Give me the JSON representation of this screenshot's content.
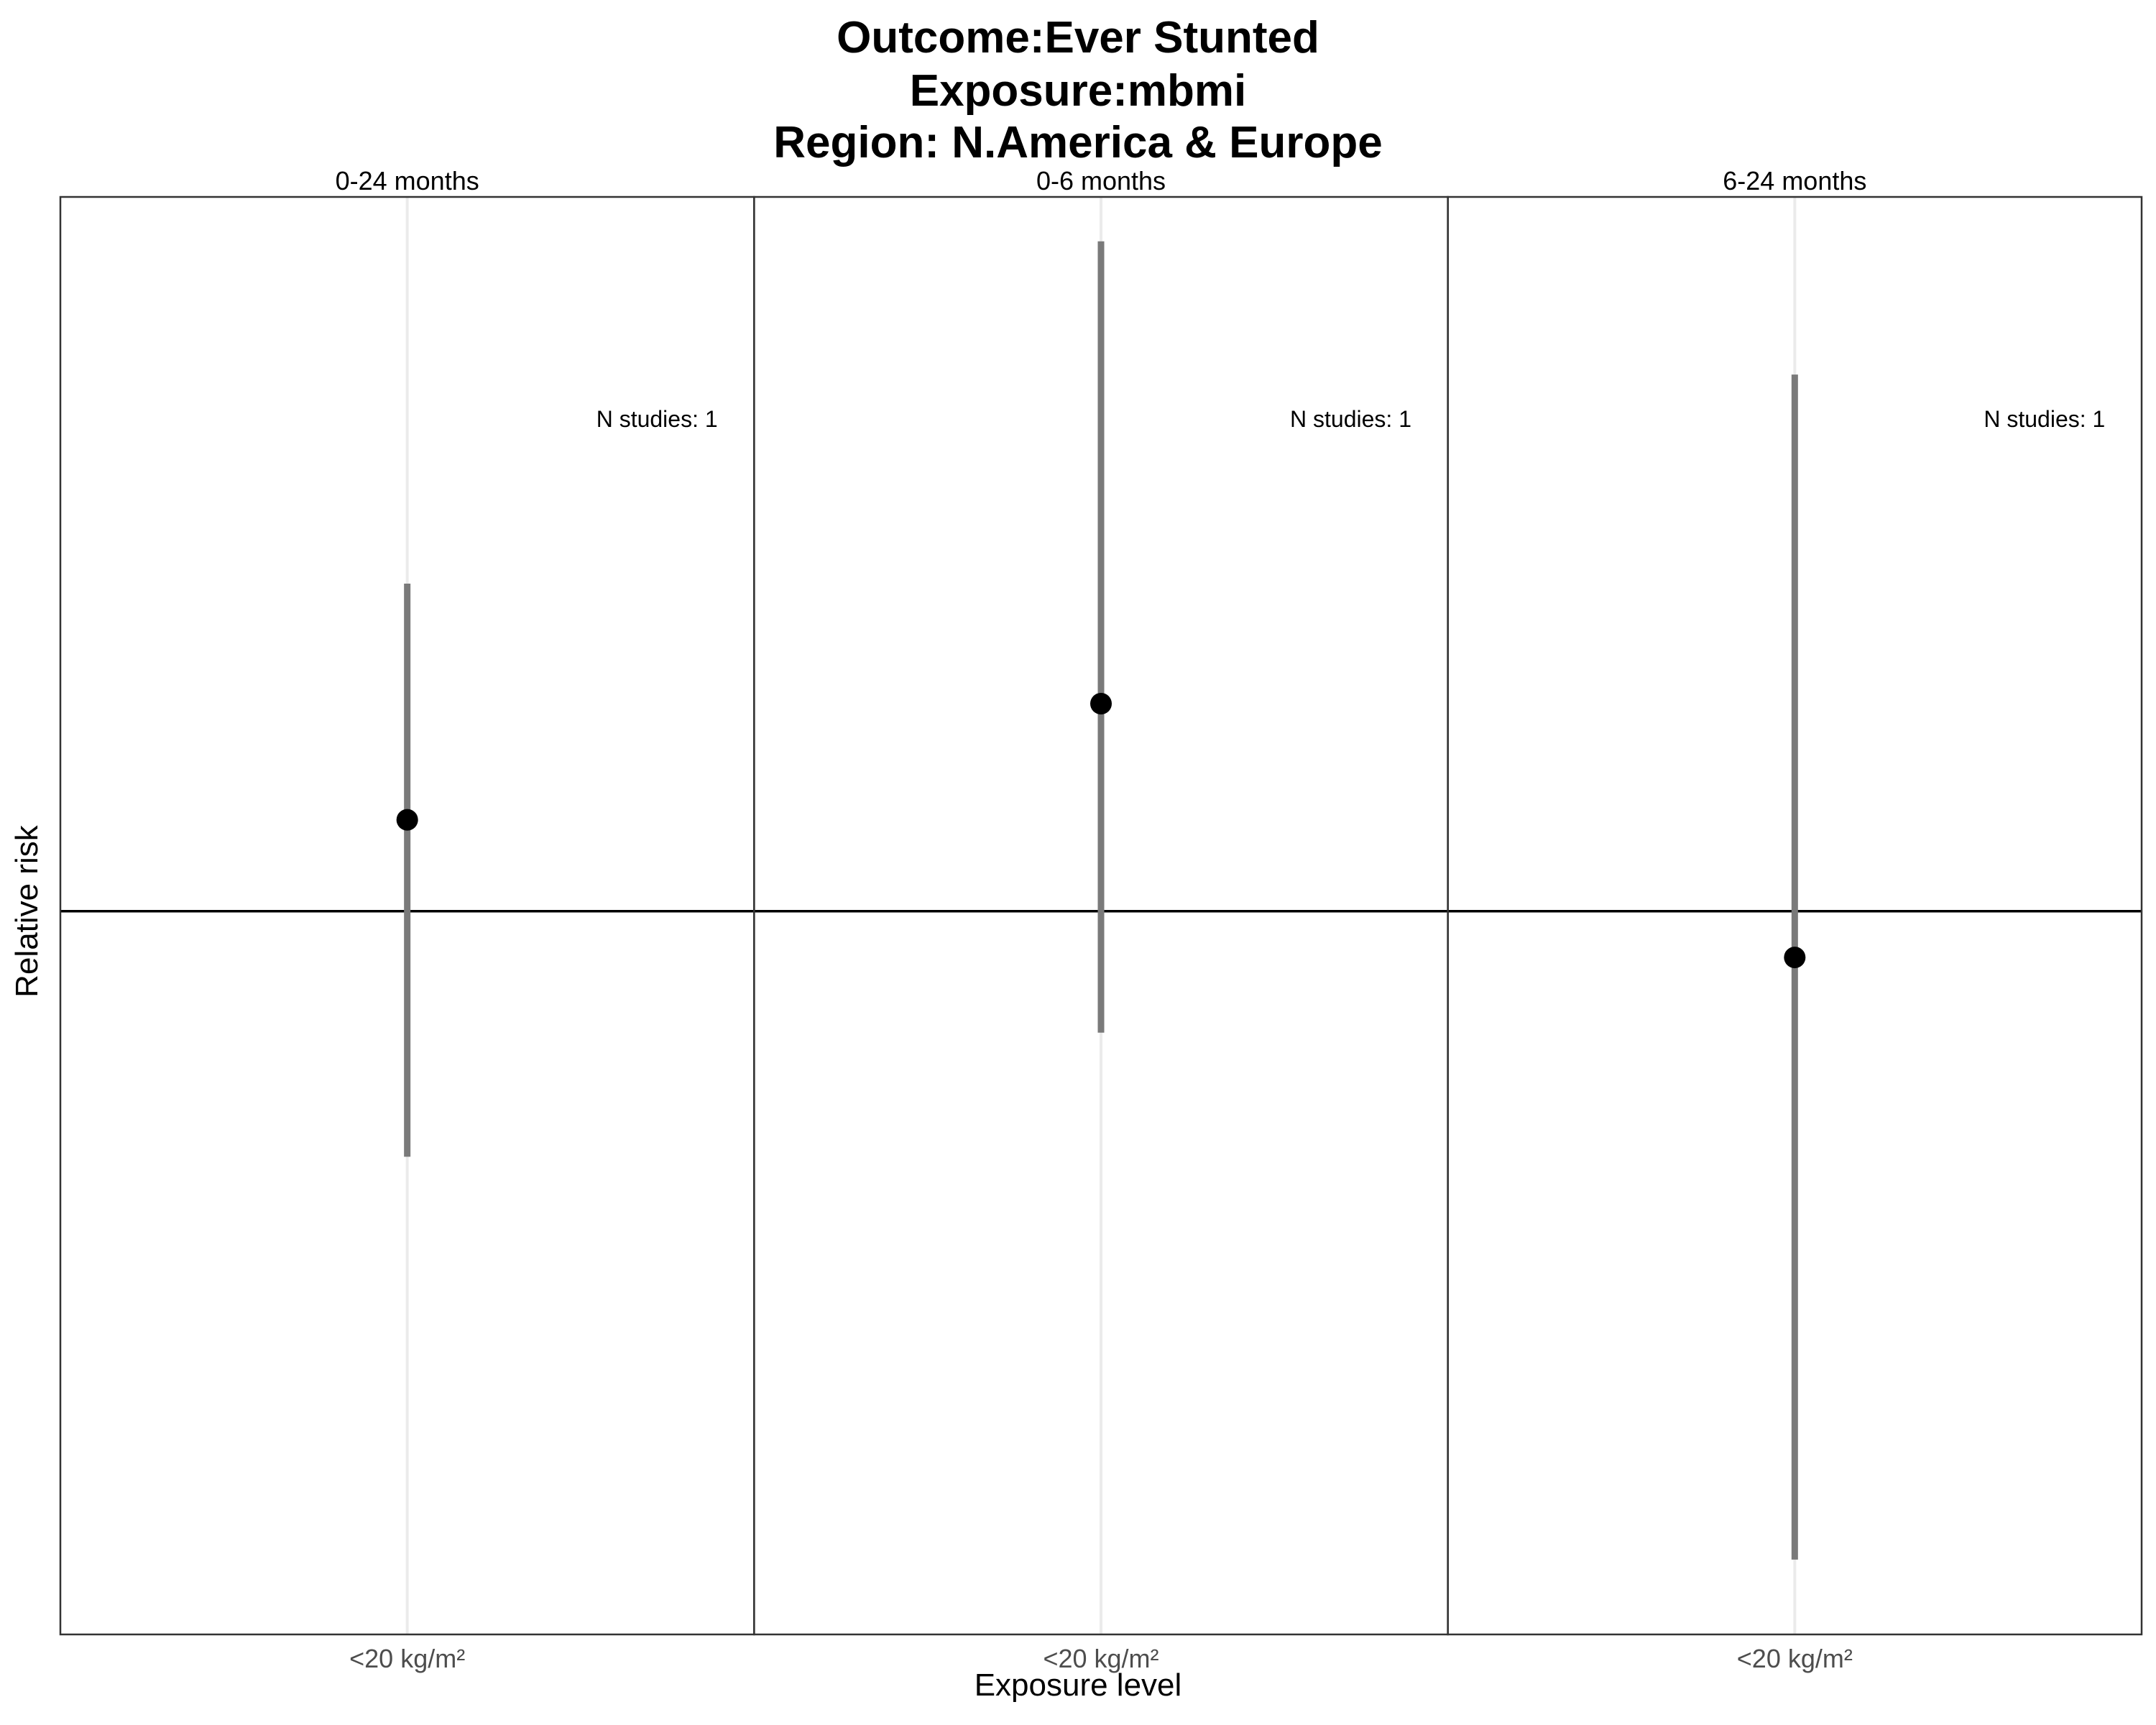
{
  "title": [
    "Outcome:Ever Stunted",
    "Exposure:mbmi",
    "Region: N.America & Europe"
  ],
  "chart_data": {
    "type": "forest",
    "title": "Outcome:Ever Stunted / Exposure:mbmi / Region: N.America & Europe",
    "xlabel": "Exposure level",
    "ylabel": "Relative risk",
    "reference_line": 1.0,
    "y_scale": "log",
    "y_ticks_shown": false,
    "ylim": [
      0.38,
      2.6
    ],
    "panels": [
      {
        "label": "0-24 months",
        "category": "<20 kg/m²",
        "estimate": 1.13,
        "ci_lower": 0.72,
        "ci_upper": 1.55,
        "n_studies_label": "N studies: 1"
      },
      {
        "label": "0-6 months",
        "category": "<20 kg/m²",
        "estimate": 1.32,
        "ci_lower": 0.85,
        "ci_upper": 2.45,
        "n_studies_label": "N studies: 1"
      },
      {
        "label": "6-24 months",
        "category": "<20 kg/m²",
        "estimate": 0.94,
        "ci_lower": 0.42,
        "ci_upper": 2.05,
        "n_studies_label": "N studies: 1"
      }
    ]
  }
}
